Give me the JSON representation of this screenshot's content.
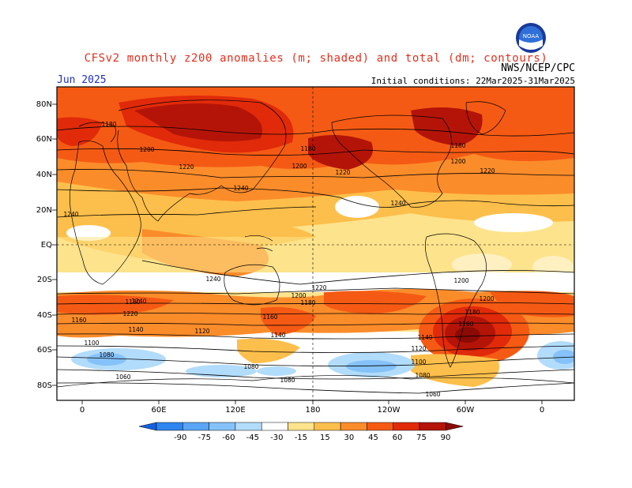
{
  "header": {
    "title": "CFSv2 monthly z200 anomalies (m; shaded) and total (dm; contours)",
    "agency": "NWS/NCEP/CPC",
    "month": "Jun 2025",
    "initial_conditions": "Initial conditions: 22Mar2025-31Mar2025",
    "logo": "noaa-logo",
    "logo_text": "NOAA"
  },
  "map": {
    "lat_labels": [
      "80N",
      "60N",
      "40N",
      "20N",
      "EQ",
      "20S",
      "40S",
      "60S",
      "80S"
    ],
    "lon_labels": [
      "0",
      "60E",
      "120E",
      "180",
      "120W",
      "60W",
      "0"
    ],
    "contour_labels": [
      {
        "text": "1180"
      },
      {
        "text": "1200"
      },
      {
        "text": "1220"
      },
      {
        "text": "1240"
      },
      {
        "text": "1240"
      },
      {
        "text": "1180"
      },
      {
        "text": "1200"
      },
      {
        "text": "1220"
      },
      {
        "text": "1240"
      },
      {
        "text": "1180"
      },
      {
        "text": "1200"
      },
      {
        "text": "1220"
      },
      {
        "text": "1240"
      },
      {
        "text": "1240"
      },
      {
        "text": "1220"
      },
      {
        "text": "1200"
      },
      {
        "text": "1220"
      },
      {
        "text": "1200"
      },
      {
        "text": "1180"
      },
      {
        "text": "1200"
      },
      {
        "text": "1180"
      },
      {
        "text": "1160"
      },
      {
        "text": "1140"
      },
      {
        "text": "1120"
      },
      {
        "text": "1160"
      },
      {
        "text": "1140"
      },
      {
        "text": "1100"
      },
      {
        "text": "1080"
      },
      {
        "text": "1080"
      },
      {
        "text": "1060"
      },
      {
        "text": "1080"
      },
      {
        "text": "1140"
      },
      {
        "text": "1120"
      },
      {
        "text": "1100"
      },
      {
        "text": "1080"
      },
      {
        "text": "1060"
      },
      {
        "text": "1180"
      },
      {
        "text": "1160"
      }
    ]
  },
  "colorbar": {
    "ticks": [
      "-90",
      "-75",
      "-60",
      "-45",
      "-30",
      "-15",
      "15",
      "30",
      "45",
      "60",
      "75",
      "90"
    ],
    "colors": [
      "#1560e0",
      "#2f85f0",
      "#5aa5f5",
      "#85c2f9",
      "#b2dcfb",
      "#ffffff",
      "#fde38c",
      "#fdbf4b",
      "#fb8c2a",
      "#f55a14",
      "#e02a0a",
      "#b41408",
      "#8c0a05"
    ]
  }
}
